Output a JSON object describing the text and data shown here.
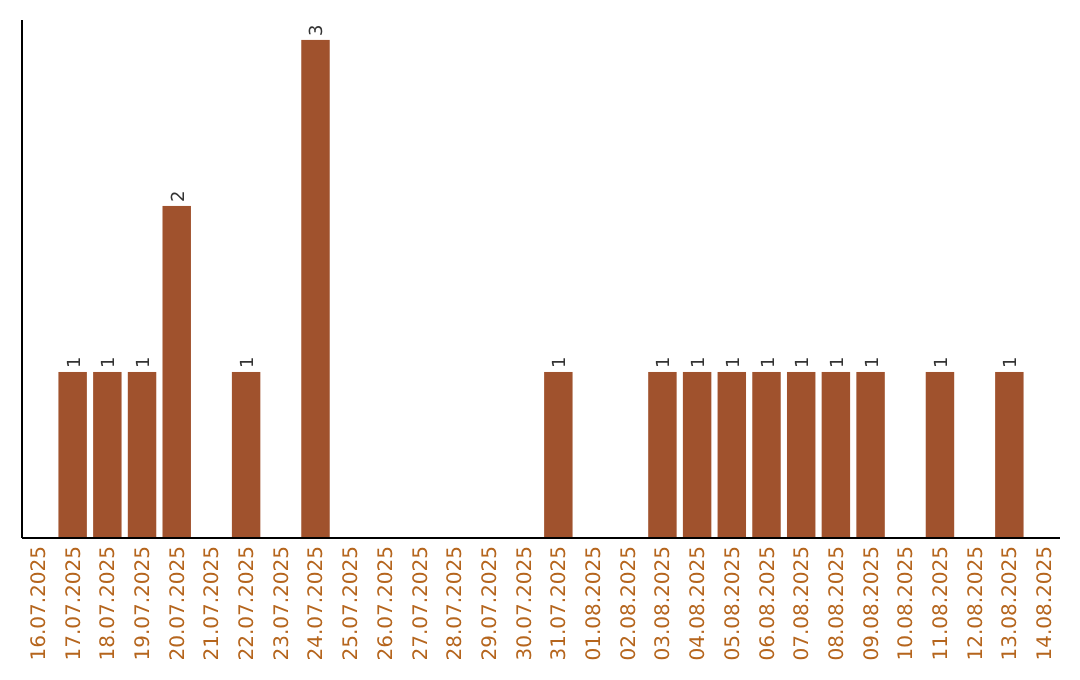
{
  "chart_data": {
    "type": "bar",
    "categories": [
      "16.07.2025",
      "17.07.2025",
      "18.07.2025",
      "19.07.2025",
      "20.07.2025",
      "21.07.2025",
      "22.07.2025",
      "23.07.2025",
      "24.07.2025",
      "25.07.2025",
      "26.07.2025",
      "27.07.2025",
      "28.07.2025",
      "29.07.2025",
      "30.07.2025",
      "31.07.2025",
      "01.08.2025",
      "02.08.2025",
      "03.08.2025",
      "04.08.2025",
      "05.08.2025",
      "06.08.2025",
      "07.08.2025",
      "08.08.2025",
      "09.08.2025",
      "10.08.2025",
      "11.08.2025",
      "12.08.2025",
      "13.08.2025",
      "14.08.2025"
    ],
    "values": [
      0,
      1,
      1,
      1,
      2,
      0,
      1,
      0,
      3,
      0,
      0,
      0,
      0,
      0,
      0,
      1,
      0,
      0,
      1,
      1,
      1,
      1,
      1,
      1,
      1,
      0,
      1,
      0,
      1,
      0
    ],
    "value_labels": [
      null,
      "1",
      "1",
      "1",
      "2",
      null,
      "1",
      null,
      "3",
      null,
      null,
      null,
      null,
      null,
      null,
      "1",
      null,
      null,
      "1",
      "1",
      "1",
      "1",
      "1",
      "1",
      "1",
      null,
      "1",
      null,
      "1",
      null
    ],
    "color": "#a0522d"
  }
}
